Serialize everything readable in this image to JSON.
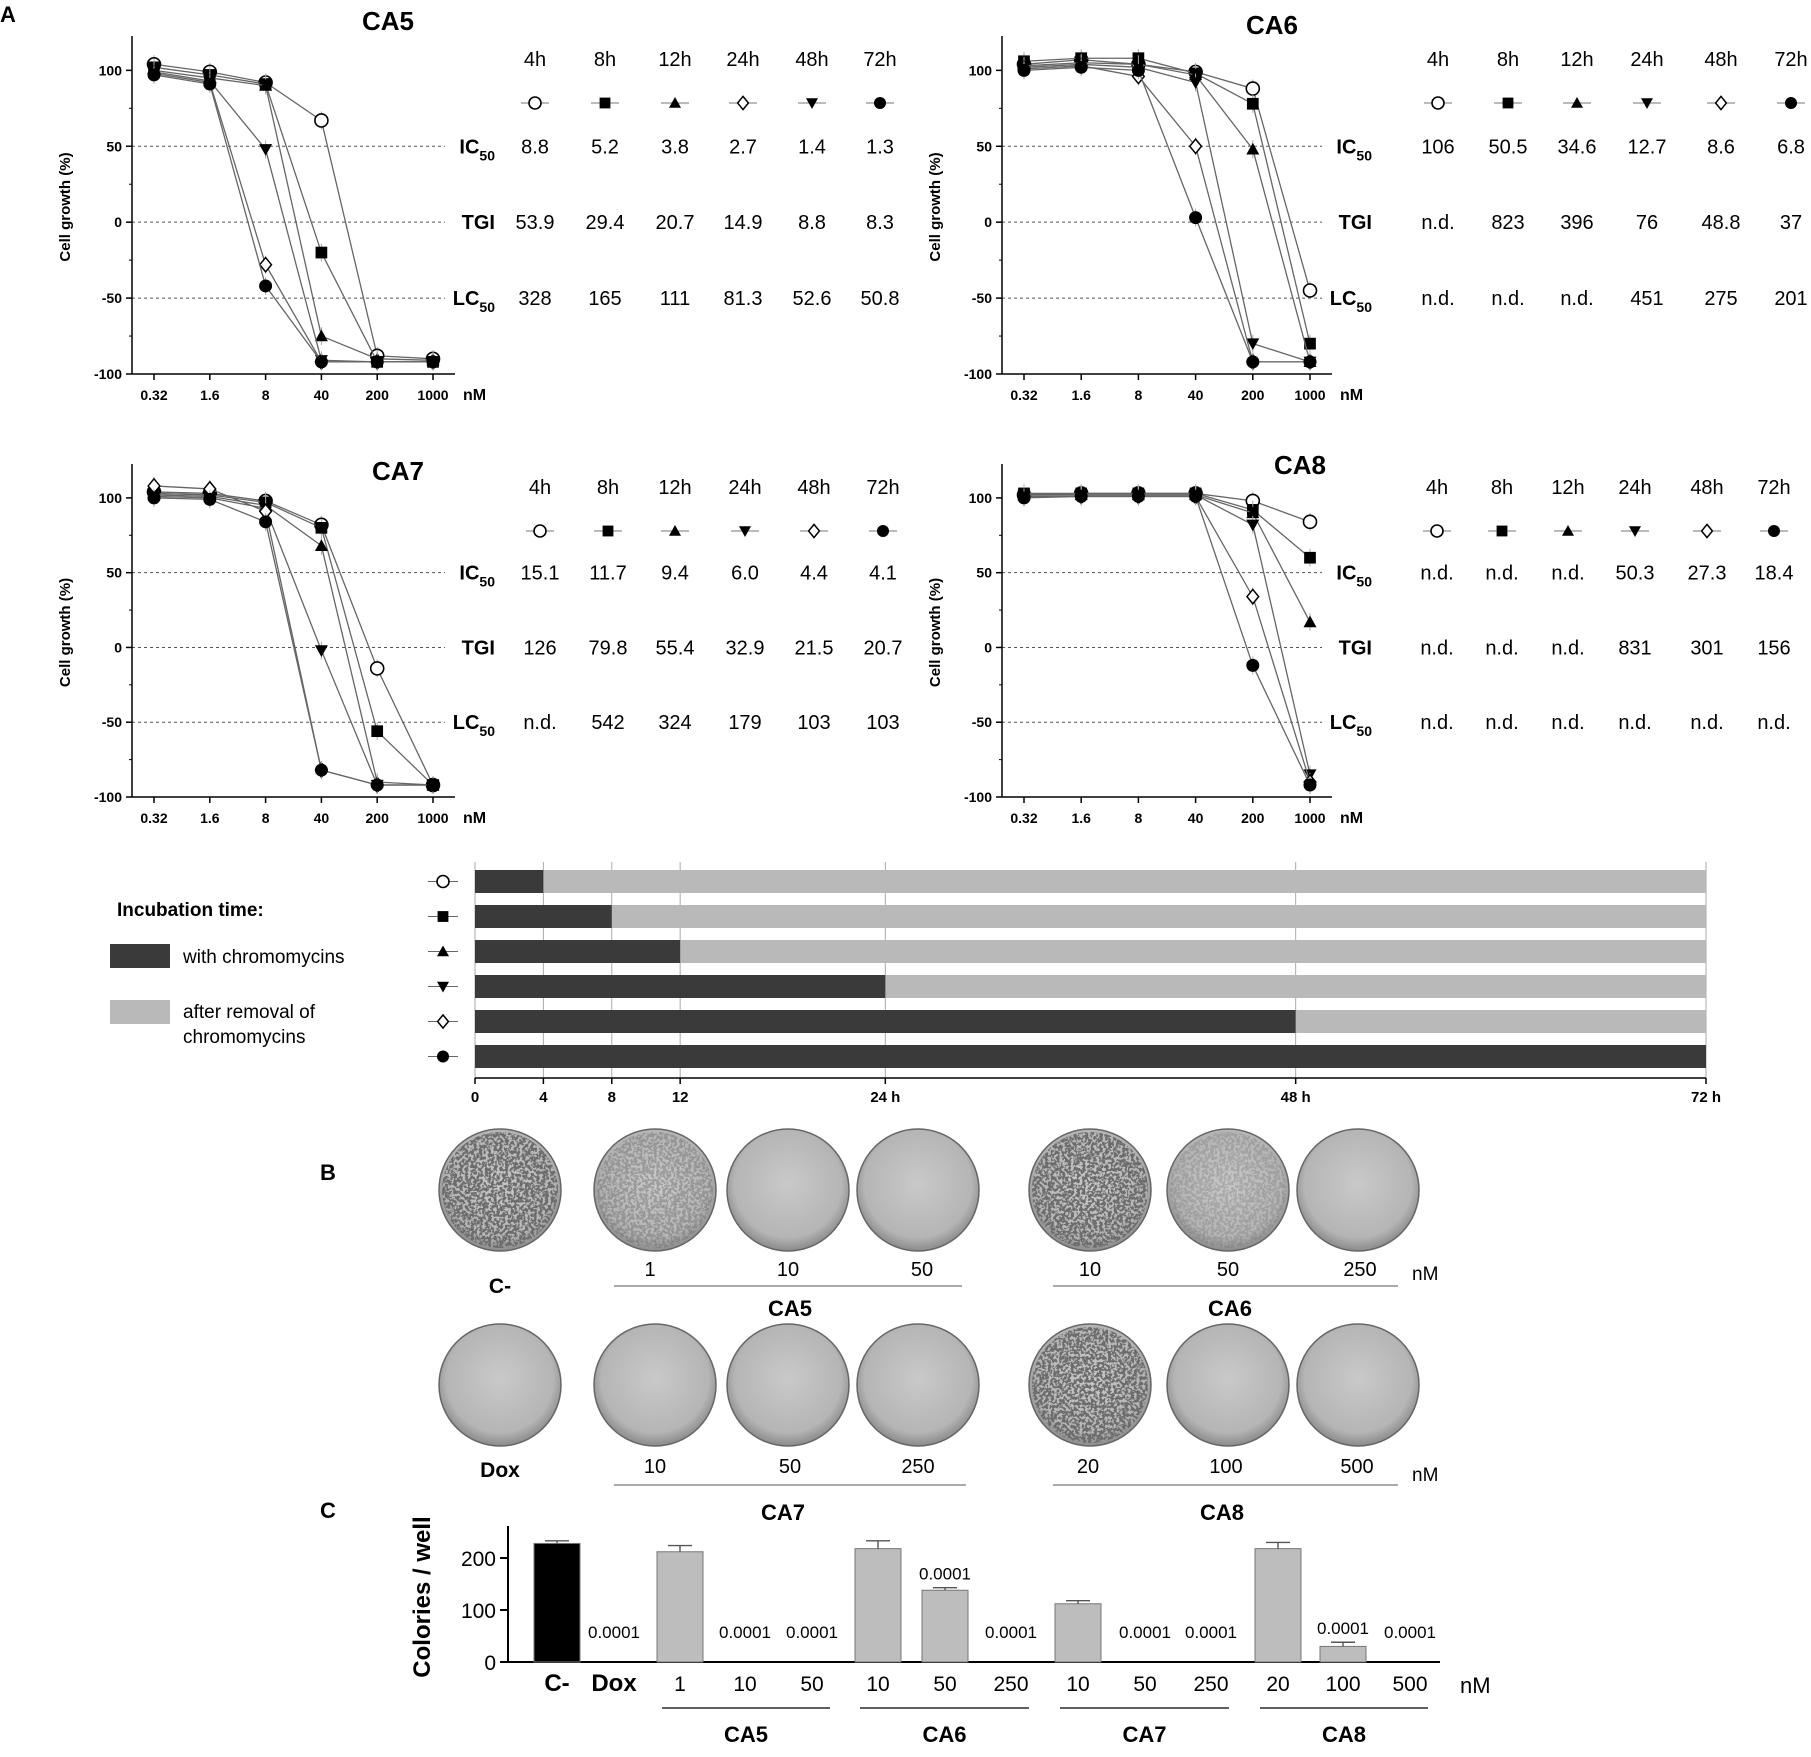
{
  "panel_labels": [
    "A",
    "B",
    "C"
  ],
  "curve_common": {
    "x_ticks": [
      "0.32",
      "1.6",
      "8",
      "40",
      "200",
      "1000"
    ],
    "x_unit": "nM",
    "y_ticks": [
      "100",
      "50",
      "0",
      "-50",
      "-100"
    ],
    "ylabel": "Cell growth (%)",
    "series_times": [
      "4h",
      "8h",
      "12h",
      "24h",
      "48h",
      "72h"
    ],
    "markers": [
      "open-circle",
      "filled-square",
      "filled-triangle",
      "open-diamond",
      "filled-triangle-down",
      "filled-circle"
    ],
    "row_labels": [
      "IC",
      "TGI",
      "LC"
    ],
    "row_subscripts": [
      "50",
      "",
      "50"
    ]
  },
  "chart_data": [
    {
      "type": "line",
      "title": "CA5",
      "x": [
        0.32,
        1.6,
        8,
        40,
        200,
        1000
      ],
      "xscale": "log",
      "ylim": [
        -100,
        120
      ],
      "reference_lines": [
        50,
        0,
        -50
      ],
      "legend_times": [
        "4h",
        "8h",
        "12h",
        "24h",
        "48h",
        "72h"
      ],
      "legend_markers": [
        "open-circle",
        "filled-square",
        "filled-triangle",
        "open-diamond",
        "filled-triangle-down",
        "filled-circle"
      ],
      "table": {
        "IC50": [
          "8.8",
          "5.2",
          "3.8",
          "2.7",
          "1.4",
          "1.3"
        ],
        "TGI": [
          "53.9",
          "29.4",
          "20.7",
          "14.9",
          "8.8",
          "8.3"
        ],
        "LC50": [
          "328",
          "165",
          "111",
          "81.3",
          "52.6",
          "50.8"
        ]
      },
      "series": [
        {
          "marker": "open-circle",
          "values": [
            104,
            99,
            92,
            67,
            -88,
            -90
          ]
        },
        {
          "marker": "filled-square",
          "values": [
            102,
            97,
            91,
            -20,
            -92,
            -92
          ]
        },
        {
          "marker": "filled-triangle",
          "values": [
            100,
            95,
            90,
            -75,
            -90,
            -91
          ]
        },
        {
          "marker": "filled-triangle-down",
          "values": [
            99,
            93,
            48,
            -91,
            -92,
            -92
          ]
        },
        {
          "marker": "open-diamond",
          "values": [
            98,
            92,
            -28,
            -92,
            -92,
            -92
          ]
        },
        {
          "marker": "filled-circle",
          "values": [
            97,
            91,
            -42,
            -92,
            -92,
            -92
          ]
        }
      ]
    },
    {
      "type": "line",
      "title": "CA6",
      "x": [
        0.32,
        1.6,
        8,
        40,
        200,
        1000
      ],
      "xscale": "log",
      "ylim": [
        -100,
        120
      ],
      "reference_lines": [
        50,
        0,
        -50
      ],
      "legend_times": [
        "4h",
        "8h",
        "12h",
        "24h",
        "48h",
        "72h"
      ],
      "legend_markers": [
        "open-circle",
        "filled-square",
        "filled-triangle",
        "filled-triangle-down",
        "open-diamond",
        "filled-circle"
      ],
      "table": {
        "IC50": [
          "106",
          "50.5",
          "34.6",
          "12.7",
          "8.6",
          "6.8"
        ],
        "TGI": [
          "n.d.",
          "823",
          "396",
          "76",
          "48.8",
          "37"
        ],
        "LC50": [
          "n.d.",
          "n.d.",
          "n.d.",
          "451",
          "275",
          "201"
        ]
      },
      "series": [
        {
          "marker": "open-circle",
          "values": [
            104,
            107,
            104,
            99,
            88,
            -45
          ]
        },
        {
          "marker": "filled-square",
          "values": [
            106,
            108,
            108,
            98,
            78,
            -80
          ]
        },
        {
          "marker": "filled-triangle",
          "values": [
            103,
            105,
            104,
            97,
            48,
            -92
          ]
        },
        {
          "marker": "filled-triangle-down",
          "values": [
            102,
            104,
            102,
            92,
            -80,
            -92
          ]
        },
        {
          "marker": "open-diamond",
          "values": [
            101,
            103,
            96,
            50,
            -92,
            -92
          ]
        },
        {
          "marker": "filled-circle",
          "values": [
            100,
            102,
            100,
            3,
            -92,
            -92
          ]
        }
      ]
    },
    {
      "type": "line",
      "title": "CA7",
      "x": [
        0.32,
        1.6,
        8,
        40,
        200,
        1000
      ],
      "xscale": "log",
      "ylim": [
        -100,
        120
      ],
      "reference_lines": [
        50,
        0,
        -50
      ],
      "legend_times": [
        "4h",
        "8h",
        "12h",
        "24h",
        "48h",
        "72h"
      ],
      "legend_markers": [
        "open-circle",
        "filled-square",
        "filled-triangle",
        "filled-triangle-down",
        "open-diamond",
        "filled-circle"
      ],
      "table": {
        "IC50": [
          "15.1",
          "11.7",
          "9.4",
          "6.0",
          "4.4",
          "4.1"
        ],
        "TGI": [
          "126",
          "79.8",
          "55.4",
          "32.9",
          "21.5",
          "20.7"
        ],
        "LC50": [
          "n.d.",
          "542",
          "324",
          "179",
          "103",
          "103"
        ]
      },
      "series": [
        {
          "marker": "open-circle",
          "values": [
            104,
            103,
            98,
            82,
            -14,
            -92
          ]
        },
        {
          "marker": "filled-square",
          "values": [
            103,
            102,
            97,
            80,
            -56,
            -92
          ]
        },
        {
          "marker": "filled-triangle",
          "values": [
            102,
            101,
            95,
            68,
            -90,
            -92
          ]
        },
        {
          "marker": "filled-triangle-down",
          "values": [
            101,
            100,
            93,
            -2,
            -92,
            -92
          ]
        },
        {
          "marker": "open-diamond",
          "values": [
            108,
            106,
            91,
            -82,
            -92,
            -92
          ]
        },
        {
          "marker": "filled-circle",
          "values": [
            100,
            99,
            84,
            -82,
            -92,
            -92
          ]
        }
      ]
    },
    {
      "type": "line",
      "title": "CA8",
      "x": [
        0.32,
        1.6,
        8,
        40,
        200,
        1000
      ],
      "xscale": "log",
      "ylim": [
        -100,
        120
      ],
      "reference_lines": [
        50,
        0,
        -50
      ],
      "legend_times": [
        "4h",
        "8h",
        "12h",
        "24h",
        "48h",
        "72h"
      ],
      "legend_markers": [
        "open-circle",
        "filled-square",
        "filled-triangle",
        "filled-triangle-down",
        "open-diamond",
        "filled-circle"
      ],
      "table": {
        "IC50": [
          "n.d.",
          "n.d.",
          "n.d.",
          "50.3",
          "27.3",
          "18.4"
        ],
        "TGI": [
          "n.d.",
          "n.d.",
          "n.d.",
          "831",
          "301",
          "156"
        ],
        "LC50": [
          "n.d.",
          "n.d.",
          "n.d.",
          "n.d.",
          "n.d.",
          "n.d."
        ]
      },
      "series": [
        {
          "marker": "open-circle",
          "values": [
            102,
            103,
            103,
            103,
            98,
            84
          ]
        },
        {
          "marker": "filled-square",
          "values": [
            103,
            103,
            103,
            103,
            92,
            60
          ]
        },
        {
          "marker": "filled-triangle",
          "values": [
            102,
            102,
            102,
            102,
            90,
            17
          ]
        },
        {
          "marker": "filled-triangle-down",
          "values": [
            102,
            102,
            102,
            102,
            82,
            -85
          ]
        },
        {
          "marker": "open-diamond",
          "values": [
            101,
            101,
            101,
            101,
            34,
            -90
          ]
        },
        {
          "marker": "filled-circle",
          "values": [
            100,
            101,
            101,
            101,
            -12,
            -92
          ]
        }
      ]
    },
    {
      "type": "bar",
      "orientation": "horizontal-stacked",
      "legend_title": "Incubation time:",
      "legend": [
        "with chromomycins",
        "after removal of chromomycins"
      ],
      "markers": [
        "open-circle",
        "filled-square",
        "filled-triangle",
        "filled-triangle-down",
        "open-diamond",
        "filled-circle"
      ],
      "with_hours": [
        4,
        8,
        12,
        24,
        48,
        72
      ],
      "total_hours": 72,
      "x_ticks": [
        "0",
        "4",
        "8",
        "12",
        "24 h",
        "48 h",
        "72 h"
      ],
      "x_tick_values": [
        0,
        4,
        8,
        12,
        24,
        48,
        72
      ],
      "colors": {
        "with": "#3a3a3a",
        "after": "#b9b9b9"
      }
    },
    {
      "type": "bar",
      "ylabel": "Colories / well",
      "categories": [
        "C-",
        "Dox",
        "1",
        "10",
        "50",
        "10",
        "50",
        "250",
        "10",
        "50",
        "250",
        "20",
        "100",
        "500"
      ],
      "values": [
        228,
        0,
        212,
        0,
        0,
        218,
        138,
        0,
        112,
        0,
        0,
        218,
        30,
        0
      ],
      "errors": [
        5,
        0,
        12,
        0,
        0,
        15,
        5,
        0,
        6,
        0,
        0,
        12,
        8,
        0
      ],
      "pvalue_labels": [
        "",
        "0.0001",
        "",
        "0.0001",
        "0.0001",
        "",
        "0.0001",
        "0.0001",
        "",
        "0.0001",
        "0.0001",
        "",
        "0.0001",
        "0.0001"
      ],
      "ylim": [
        0,
        250
      ],
      "y_ticks": [
        "0",
        "100",
        "200"
      ],
      "unit": "nM",
      "groups": [
        {
          "label": "CA5",
          "from": 2,
          "to": 4
        },
        {
          "label": "CA6",
          "from": 5,
          "to": 7
        },
        {
          "label": "CA7",
          "from": 8,
          "to": 10
        },
        {
          "label": "CA8",
          "from": 11,
          "to": 13
        }
      ],
      "colors": {
        "control": "#000000",
        "treated": "#bdbdbd"
      }
    }
  ],
  "colony_plates": {
    "unit": "nM",
    "row1": {
      "control_label": "C-",
      "ca5": {
        "label": "CA5",
        "doses": [
          "1",
          "10",
          "50"
        ]
      },
      "ca6": {
        "label": "CA6",
        "doses": [
          "10",
          "50",
          "250"
        ]
      }
    },
    "row2": {
      "control_label": "Dox",
      "ca7": {
        "label": "CA7",
        "doses": [
          "10",
          "50",
          "250"
        ]
      },
      "ca8": {
        "label": "CA8",
        "doses": [
          "20",
          "100",
          "500"
        ]
      }
    }
  }
}
